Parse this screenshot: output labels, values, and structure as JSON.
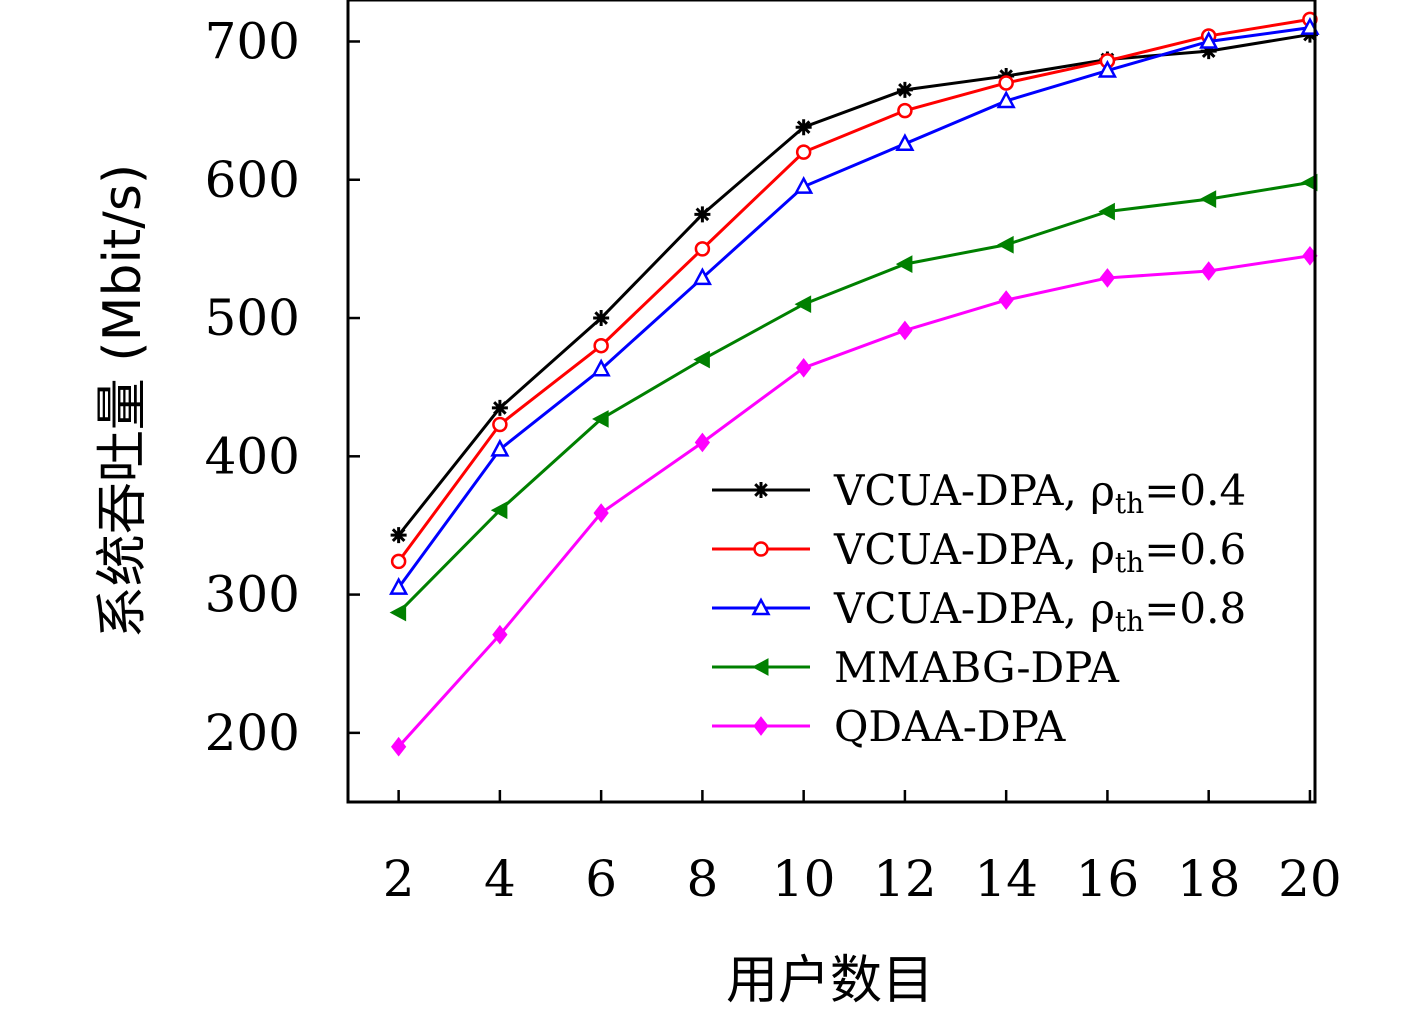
{
  "chart_data": {
    "type": "line",
    "xlabel": "用户数目",
    "ylabel": "系统吞吐量 (Mbit/s)",
    "x": [
      2,
      4,
      6,
      8,
      10,
      12,
      14,
      16,
      18,
      20
    ],
    "xlim": [
      1.0,
      20.1
    ],
    "ylim": [
      150,
      730
    ],
    "yticks": [
      200,
      300,
      400,
      500,
      600,
      700
    ],
    "grid": false,
    "legend_position": "bottom-right",
    "series": [
      {
        "name": "VCUA-DPA, ρ_th=0.4",
        "legend_main": "VCUA-DPA, ρ",
        "legend_sub": "th",
        "legend_tail": "=0.4",
        "color": "#000000",
        "marker": "asterisk",
        "values": [
          343,
          435,
          500,
          575,
          638,
          665,
          675,
          687,
          693,
          705
        ]
      },
      {
        "name": "VCUA-DPA, ρ_th=0.6",
        "legend_main": "VCUA-DPA, ρ",
        "legend_sub": "th",
        "legend_tail": "=0.6",
        "color": "#ff0000",
        "marker": "circle",
        "values": [
          324,
          423,
          480,
          550,
          620,
          650,
          670,
          686,
          704,
          716
        ]
      },
      {
        "name": "VCUA-DPA, ρ_th=0.8",
        "legend_main": "VCUA-DPA, ρ",
        "legend_sub": "th",
        "legend_tail": "=0.8",
        "color": "#0000ff",
        "marker": "triangle",
        "values": [
          305,
          405,
          463,
          529,
          595,
          626,
          657,
          679,
          700,
          710
        ]
      },
      {
        "name": "MMABG-DPA",
        "legend_main": "MMABG-DPA",
        "legend_sub": "",
        "legend_tail": "",
        "color": "#008000",
        "marker": "triangle-left",
        "values": [
          287,
          361,
          427,
          470,
          510,
          539,
          553,
          577,
          586,
          598
        ]
      },
      {
        "name": "QDAA-DPA",
        "legend_main": "QDAA-DPA",
        "legend_sub": "",
        "legend_tail": "",
        "color": "#ff00ff",
        "marker": "diamond",
        "values": [
          190,
          271,
          359,
          410,
          464,
          491,
          513,
          529,
          534,
          545
        ]
      }
    ]
  }
}
